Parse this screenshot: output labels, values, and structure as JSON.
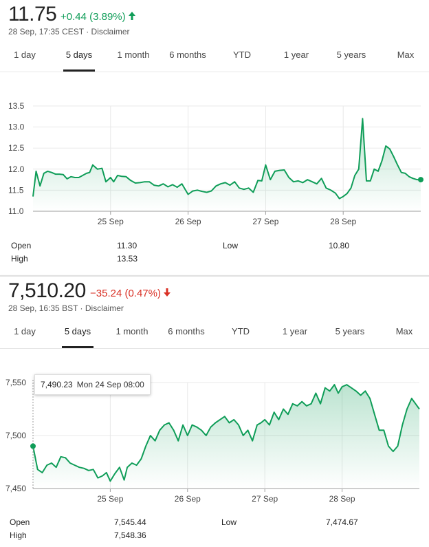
{
  "widget1": {
    "price": "11.75",
    "change": "+0.44 (3.89%)",
    "direction": "up",
    "timestamp": "28 Sep, 17:35 CEST",
    "disclaimer": "Disclaimer",
    "tabs": [
      "1 day",
      "5 days",
      "1 month",
      "6 months",
      "YTD",
      "1 year",
      "5 years",
      "Max"
    ],
    "active_tab": "5 days",
    "stats": {
      "open_label": "Open",
      "open_value": "11.30",
      "high_label": "High",
      "high_value": "13.53",
      "low_label": "Low",
      "low_value": "10.80"
    }
  },
  "widget2": {
    "price": "7,510.20",
    "change": "−35.24 (0.47%)",
    "direction": "down",
    "timestamp": "28 Sep, 16:35 BST",
    "disclaimer": "Disclaimer",
    "tabs": [
      "1 day",
      "5 days",
      "1 month",
      "6 months",
      "YTD",
      "1 year",
      "5 years",
      "Max"
    ],
    "active_tab": "5 days",
    "tooltip": {
      "value": "7,490.23",
      "date": "Mon 24 Sep 08:00"
    },
    "stats": {
      "open_label": "Open",
      "open_value": "7,545.44",
      "high_label": "High",
      "high_value": "7,548.36",
      "low_label": "Low",
      "low_value": "7,474.67"
    }
  },
  "colors": {
    "line": "#0f9d58",
    "up": "#0f9d58",
    "down": "#d93025",
    "grid": "#e8e8e8",
    "axis": "#cccccc"
  },
  "icons": {
    "up_arrow": "arrow-up-icon",
    "down_arrow": "arrow-down-icon"
  },
  "chart_data": [
    {
      "type": "area",
      "title": "",
      "xlabel": "",
      "ylabel": "",
      "x_ticks": [
        "25 Sep",
        "26 Sep",
        "27 Sep",
        "28 Sep"
      ],
      "y_ticks": [
        "13.5",
        "13.0",
        "12.5",
        "12.0",
        "11.5",
        "11.0"
      ],
      "ylim": [
        11.0,
        13.5
      ],
      "grid": true,
      "x_range": [
        0,
        5
      ],
      "x": [
        0,
        0.04,
        0.09,
        0.14,
        0.19,
        0.24,
        0.29,
        0.34,
        0.39,
        0.44,
        0.49,
        0.54,
        0.59,
        0.64,
        0.69,
        0.73,
        0.77,
        0.83,
        0.89,
        0.94,
        1.0,
        1.04,
        1.09,
        1.14,
        1.2,
        1.26,
        1.32,
        1.38,
        1.44,
        1.5,
        1.56,
        1.62,
        1.68,
        1.74,
        1.8,
        1.86,
        1.92,
        2.0,
        2.06,
        2.12,
        2.18,
        2.24,
        2.3,
        2.36,
        2.42,
        2.48,
        2.54,
        2.6,
        2.66,
        2.72,
        2.78,
        2.84,
        2.9,
        2.95,
        3.0,
        3.06,
        3.12,
        3.18,
        3.24,
        3.3,
        3.36,
        3.42,
        3.48,
        3.54,
        3.6,
        3.66,
        3.72,
        3.78,
        3.84,
        3.9,
        3.95,
        4.0,
        4.05,
        4.1,
        4.15,
        4.2,
        4.25,
        4.3,
        4.35,
        4.4,
        4.45,
        4.5,
        4.55,
        4.6,
        4.65,
        4.7,
        4.75,
        4.8,
        4.85,
        4.9,
        4.95,
        5.0
      ],
      "y": [
        11.35,
        11.95,
        11.6,
        11.9,
        11.95,
        11.92,
        11.88,
        11.88,
        11.87,
        11.77,
        11.82,
        11.8,
        11.8,
        11.85,
        11.9,
        11.92,
        12.1,
        12.0,
        12.02,
        11.7,
        11.8,
        11.7,
        11.85,
        11.83,
        11.82,
        11.73,
        11.67,
        11.68,
        11.7,
        11.7,
        11.62,
        11.6,
        11.65,
        11.58,
        11.63,
        11.57,
        11.65,
        11.4,
        11.48,
        11.5,
        11.47,
        11.45,
        11.48,
        11.6,
        11.65,
        11.68,
        11.62,
        11.7,
        11.55,
        11.52,
        11.55,
        11.45,
        11.73,
        11.72,
        12.1,
        11.75,
        11.95,
        11.97,
        11.98,
        11.8,
        11.7,
        11.72,
        11.68,
        11.75,
        11.7,
        11.65,
        11.78,
        11.55,
        11.5,
        11.43,
        11.3,
        11.35,
        11.42,
        11.55,
        11.85,
        12.0,
        13.2,
        11.72,
        11.72,
        12.0,
        11.95,
        12.2,
        12.55,
        12.48,
        12.3,
        12.1,
        11.92,
        11.9,
        11.82,
        11.78,
        11.75,
        11.75
      ]
    },
    {
      "type": "area",
      "title": "",
      "xlabel": "",
      "ylabel": "",
      "x_ticks": [
        "25 Sep",
        "26 Sep",
        "27 Sep",
        "28 Sep"
      ],
      "y_ticks": [
        "7,550",
        "7,500",
        "7,450"
      ],
      "ylim": [
        7450,
        7550
      ],
      "grid": true,
      "x_range": [
        0,
        5
      ],
      "x": [
        0,
        0.06,
        0.12,
        0.18,
        0.24,
        0.3,
        0.36,
        0.42,
        0.48,
        0.54,
        0.6,
        0.66,
        0.72,
        0.78,
        0.84,
        0.9,
        0.95,
        1.0,
        1.06,
        1.12,
        1.18,
        1.22,
        1.28,
        1.34,
        1.4,
        1.46,
        1.52,
        1.58,
        1.64,
        1.7,
        1.76,
        1.82,
        1.88,
        1.94,
        2.0,
        2.06,
        2.12,
        2.18,
        2.24,
        2.3,
        2.36,
        2.42,
        2.48,
        2.54,
        2.6,
        2.66,
        2.72,
        2.78,
        2.84,
        2.9,
        2.95,
        3.0,
        3.06,
        3.12,
        3.18,
        3.24,
        3.3,
        3.36,
        3.42,
        3.48,
        3.54,
        3.6,
        3.66,
        3.72,
        3.78,
        3.84,
        3.9,
        3.95,
        4.0,
        4.06,
        4.12,
        4.18,
        4.24,
        4.3,
        4.36,
        4.42,
        4.48,
        4.54,
        4.6,
        4.66,
        4.72,
        4.78,
        4.84,
        4.9,
        4.95,
        5.0
      ],
      "y": [
        7490,
        7468,
        7465,
        7472,
        7474,
        7470,
        7480,
        7479,
        7474,
        7472,
        7470,
        7469,
        7467,
        7468,
        7460,
        7462,
        7465,
        7457,
        7464,
        7470,
        7458,
        7470,
        7474,
        7472,
        7478,
        7490,
        7500,
        7495,
        7505,
        7510,
        7512,
        7505,
        7495,
        7510,
        7500,
        7510,
        7508,
        7505,
        7500,
        7508,
        7512,
        7515,
        7518,
        7512,
        7515,
        7510,
        7500,
        7505,
        7495,
        7510,
        7512,
        7515,
        7510,
        7522,
        7515,
        7525,
        7520,
        7530,
        7528,
        7532,
        7528,
        7530,
        7540,
        7530,
        7545,
        7542,
        7548,
        7540,
        7546,
        7548,
        7545,
        7542,
        7538,
        7542,
        7535,
        7520,
        7505,
        7505,
        7490,
        7485,
        7490,
        7510,
        7525,
        7535,
        7530,
        7525
      ]
    }
  ]
}
